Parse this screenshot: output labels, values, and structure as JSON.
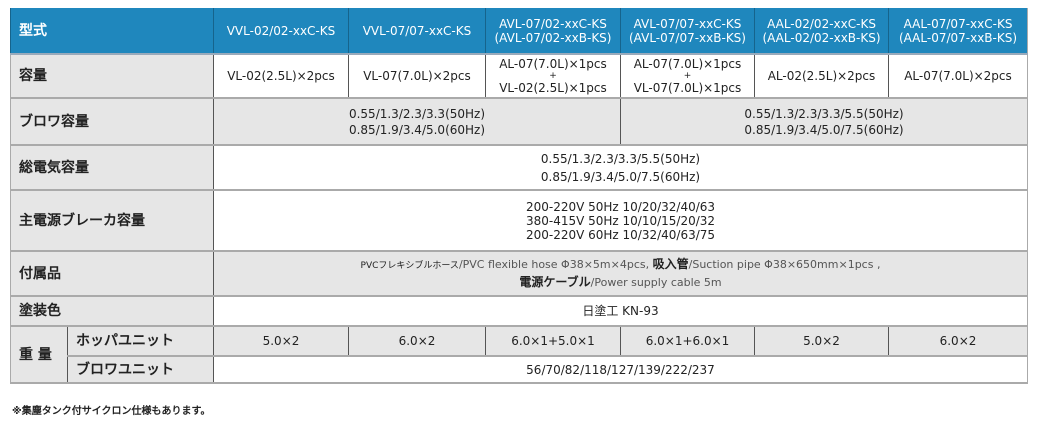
{
  "header": {
    "label": "型式",
    "models": [
      "VVL-02/02-xxC-KS",
      "VVL-07/07-xxC-KS",
      [
        "AVL-07/02-xxC-KS",
        "(AVL-07/02-xxB-KS)"
      ],
      [
        "AVL-07/07-xxC-KS",
        "(AVL-07/07-xxB-KS)"
      ],
      [
        "AAL-02/02-xxC-KS",
        "(AAL-02/02-xxB-KS)"
      ],
      [
        "AAL-07/07-xxC-KS",
        "(AAL-07/07-xxB-KS)"
      ]
    ]
  },
  "capacity": {
    "label": "容量",
    "values": [
      [
        "VL-02(2.5L)×2pcs"
      ],
      [
        "VL-07(7.0L)×2pcs"
      ],
      [
        "AL-07(7.0L)×1pcs",
        "+",
        "VL-02(2.5L)×1pcs"
      ],
      [
        "AL-07(7.0L)×1pcs",
        "+",
        "VL-07(7.0L)×1pcs"
      ],
      [
        "AL-02(2.5L)×2pcs"
      ],
      [
        "AL-07(7.0L)×2pcs"
      ]
    ]
  },
  "blower": {
    "label": "ブロワ容量",
    "groups": [
      [
        "0.55/1.3/2.3/3.3(50Hz)",
        "0.85/1.9/3.4/5.0(60Hz)"
      ],
      [
        "0.55/1.3/2.3/3.3/5.5(50Hz)",
        "0.85/1.9/3.4/5.0/7.5(60Hz)"
      ]
    ]
  },
  "total_power": {
    "label": "総電気容量",
    "lines": [
      "0.55/1.3/2.3/3.3/5.5(50Hz)",
      "0.85/1.9/3.4/5.0/7.5(60Hz)"
    ]
  },
  "breaker": {
    "label": "主電源ブレーカ容量",
    "lines": [
      "200-220V 50Hz 10/20/32/40/63",
      "380-415V 50Hz 10/10/15/20/32",
      "200-220V 60Hz 10/32/40/63/75"
    ]
  },
  "accessories": {
    "label": "付属品",
    "hose_jp": "PVCフレキシブルホース",
    "hose_en": "/PVC flexible hose Φ38×5m×4pcs, ",
    "pipe_jp": "吸入管",
    "pipe_en": "/Suction pipe Φ38×650mm×1pcs ,",
    "cable_jp": "電源ケーブル",
    "cable_en": "/Power supply cable 5m"
  },
  "paint": {
    "label": "塗装色",
    "value": "日塗工 KN-93"
  },
  "weight": {
    "label": "重 量",
    "hopper_label": "ホッパユニット",
    "hopper": [
      "5.0×2",
      "6.0×2",
      "6.0×1+5.0×1",
      "6.0×1+6.0×1",
      "5.0×2",
      "6.0×2"
    ],
    "blower_label": "ブロワユニット",
    "blower": "56/70/82/118/127/139/222/237"
  },
  "footnote": "※集塵タンク付サイクロン仕様もあります。",
  "colors": {
    "header": "#1f87bd",
    "label_bg": "#e6e6e6"
  }
}
